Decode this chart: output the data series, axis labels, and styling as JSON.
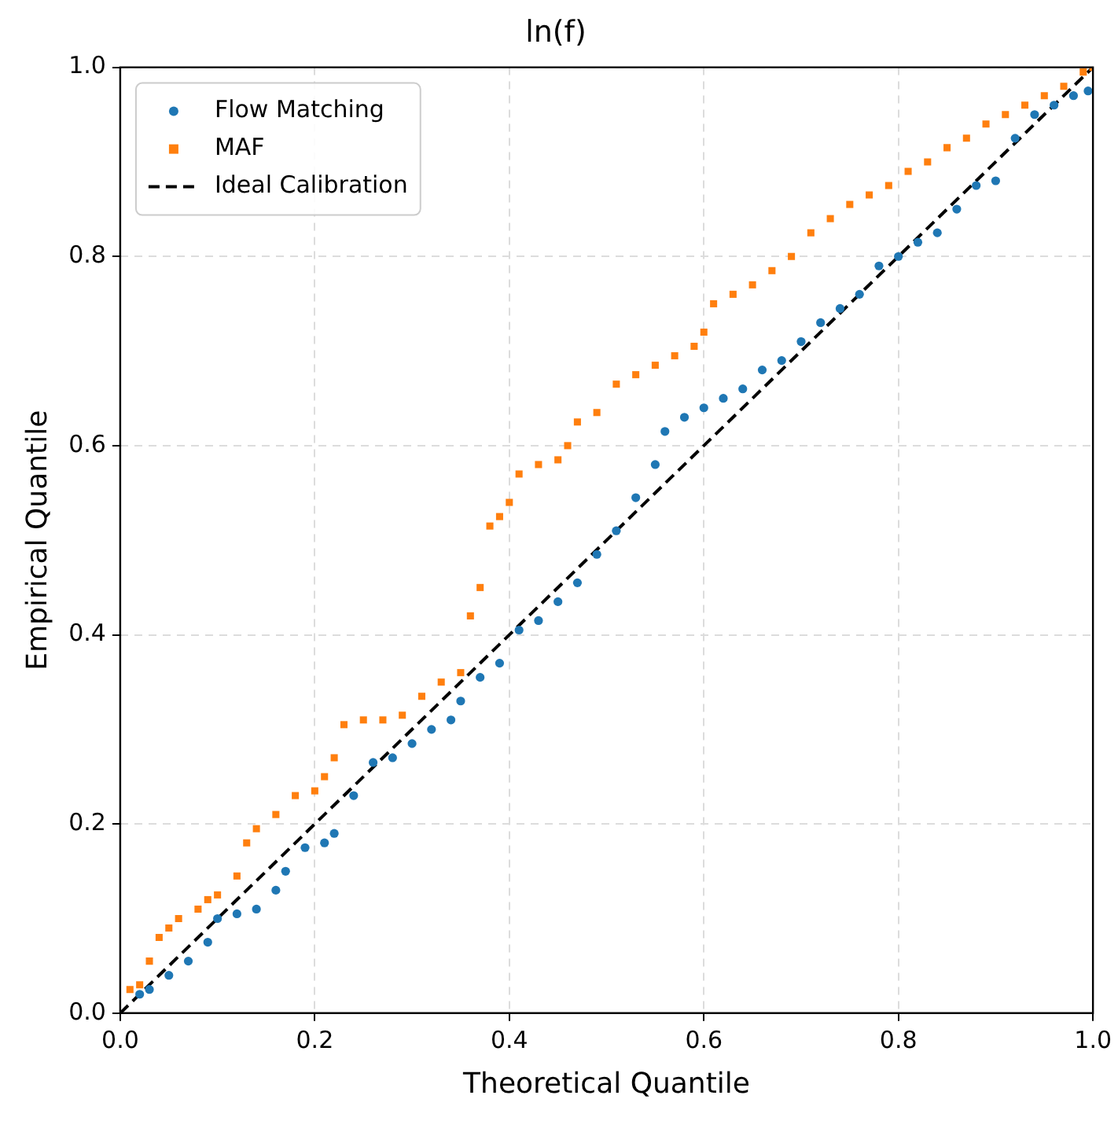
{
  "chart_data": {
    "type": "scatter",
    "title": "ln(f)",
    "xlabel": "Theoretical Quantile",
    "ylabel": "Empirical Quantile",
    "xlim": [
      0,
      1
    ],
    "ylim": [
      0,
      1
    ],
    "xticks": [
      {
        "value": 0,
        "label": "0.0"
      },
      0.2,
      0.4,
      0.6,
      0.8,
      {
        "value": 1,
        "label": "1.0"
      }
    ],
    "yticks": [
      {
        "value": 0,
        "label": "0.0"
      },
      0.2,
      0.4,
      0.6,
      0.8,
      {
        "value": 1,
        "label": "1.0"
      }
    ],
    "grid": true,
    "legend": "top left",
    "series": [
      {
        "name": "Flow Matching",
        "marker": "circle",
        "color": "#1f77b4",
        "x": [
          0.02,
          0.03,
          0.05,
          0.07,
          0.09,
          0.1,
          0.12,
          0.14,
          0.16,
          0.17,
          0.19,
          0.21,
          0.22,
          0.24,
          0.26,
          0.28,
          0.3,
          0.32,
          0.34,
          0.35,
          0.37,
          0.39,
          0.41,
          0.43,
          0.45,
          0.47,
          0.49,
          0.51,
          0.53,
          0.55,
          0.56,
          0.58,
          0.6,
          0.62,
          0.64,
          0.66,
          0.68,
          0.7,
          0.72,
          0.74,
          0.76,
          0.78,
          0.8,
          0.82,
          0.84,
          0.86,
          0.88,
          0.9,
          0.92,
          0.94,
          0.96,
          0.98,
          0.995
        ],
        "values": [
          0.02,
          0.025,
          0.04,
          0.055,
          0.075,
          0.1,
          0.105,
          0.11,
          0.13,
          0.15,
          0.175,
          0.18,
          0.19,
          0.23,
          0.265,
          0.27,
          0.285,
          0.3,
          0.31,
          0.33,
          0.355,
          0.37,
          0.405,
          0.415,
          0.435,
          0.455,
          0.485,
          0.51,
          0.545,
          0.58,
          0.615,
          0.63,
          0.64,
          0.65,
          0.66,
          0.68,
          0.69,
          0.71,
          0.73,
          0.745,
          0.76,
          0.79,
          0.8,
          0.815,
          0.825,
          0.85,
          0.875,
          0.88,
          0.925,
          0.95,
          0.96,
          0.97,
          0.975
        ]
      },
      {
        "name": "MAF",
        "marker": "square",
        "color": "#ff7f0e",
        "x": [
          0.01,
          0.02,
          0.03,
          0.04,
          0.05,
          0.06,
          0.08,
          0.09,
          0.1,
          0.12,
          0.13,
          0.14,
          0.16,
          0.18,
          0.2,
          0.21,
          0.22,
          0.23,
          0.25,
          0.27,
          0.29,
          0.31,
          0.33,
          0.35,
          0.36,
          0.37,
          0.38,
          0.39,
          0.4,
          0.41,
          0.43,
          0.45,
          0.46,
          0.47,
          0.49,
          0.51,
          0.53,
          0.55,
          0.57,
          0.59,
          0.6,
          0.61,
          0.63,
          0.65,
          0.67,
          0.69,
          0.71,
          0.73,
          0.75,
          0.77,
          0.79,
          0.81,
          0.83,
          0.85,
          0.87,
          0.89,
          0.91,
          0.93,
          0.95,
          0.97,
          0.99,
          1.0
        ],
        "values": [
          0.025,
          0.03,
          0.055,
          0.08,
          0.09,
          0.1,
          0.11,
          0.12,
          0.125,
          0.145,
          0.18,
          0.195,
          0.21,
          0.23,
          0.235,
          0.25,
          0.27,
          0.305,
          0.31,
          0.31,
          0.315,
          0.335,
          0.35,
          0.36,
          0.42,
          0.45,
          0.515,
          0.525,
          0.54,
          0.57,
          0.58,
          0.585,
          0.6,
          0.625,
          0.635,
          0.665,
          0.675,
          0.685,
          0.695,
          0.705,
          0.72,
          0.75,
          0.76,
          0.77,
          0.785,
          0.8,
          0.825,
          0.84,
          0.855,
          0.865,
          0.875,
          0.89,
          0.9,
          0.915,
          0.925,
          0.94,
          0.95,
          0.96,
          0.97,
          0.98,
          0.995,
          1.0
        ]
      },
      {
        "name": "Ideal Calibration",
        "type": "line",
        "line_style": "dashed",
        "marker": "none",
        "color": "#000000",
        "x": [
          0,
          1
        ],
        "values": [
          0,
          1
        ]
      }
    ]
  }
}
